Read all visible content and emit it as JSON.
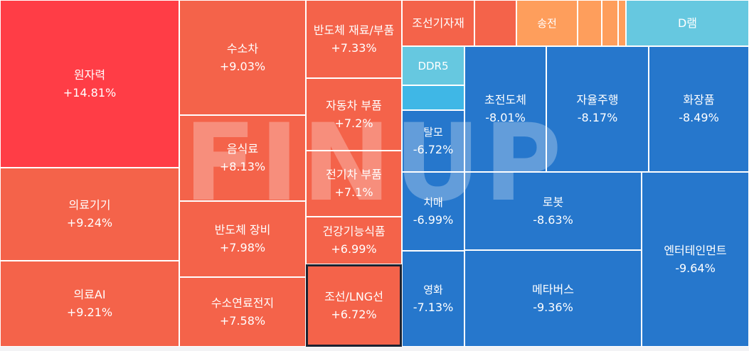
{
  "chart_data": {
    "type": "treemap",
    "colors": {
      "strong_up": "#ff3d46",
      "up": "#f4634a",
      "mild_up": "#fe9e5c",
      "mild_down": "#3fb7e6",
      "light_down": "#66c8e0",
      "down": "#2677cc",
      "border": "#ffffff",
      "selected_border": "#1c2230"
    },
    "items": [
      {
        "name": "원자력",
        "change": "+14.81%",
        "color": "strong_up"
      },
      {
        "name": "의료기기",
        "change": "+9.24%",
        "color": "up"
      },
      {
        "name": "의료AI",
        "change": "+9.21%",
        "color": "up"
      },
      {
        "name": "수소차",
        "change": "+9.03%",
        "color": "up"
      },
      {
        "name": "음식료",
        "change": "+8.13%",
        "color": "up"
      },
      {
        "name": "반도체 장비",
        "change": "+7.98%",
        "color": "up"
      },
      {
        "name": "수소연료전지",
        "change": "+7.58%",
        "color": "up"
      },
      {
        "name": "반도체 재료/부품",
        "change": "+7.33%",
        "color": "up"
      },
      {
        "name": "자동차 부품",
        "change": "+7.2%",
        "color": "up"
      },
      {
        "name": "전기차 부품",
        "change": "+7.1%",
        "color": "up"
      },
      {
        "name": "건강기능식품",
        "change": "+6.99%",
        "color": "up"
      },
      {
        "name": "조선/LNG선",
        "change": "+6.72%",
        "color": "up",
        "selected": true
      },
      {
        "name": "조선기자재",
        "change": "",
        "color": "up"
      },
      {
        "name": "",
        "change": "",
        "color": "up"
      },
      {
        "name": "송전",
        "change": "",
        "color": "mild_up"
      },
      {
        "name": "",
        "change": "",
        "color": "mild_up"
      },
      {
        "name": "",
        "change": "",
        "color": "mild_up"
      },
      {
        "name": "",
        "change": "",
        "color": "mild_up"
      },
      {
        "name": "D램",
        "change": "",
        "color": "light_down"
      },
      {
        "name": "DDR5",
        "change": "",
        "color": "light_down"
      },
      {
        "name": "",
        "change": "",
        "color": "mild_down"
      },
      {
        "name": "탈모",
        "change": "-6.72%",
        "color": "down"
      },
      {
        "name": "치매",
        "change": "-6.99%",
        "color": "down"
      },
      {
        "name": "영화",
        "change": "-7.13%",
        "color": "down"
      },
      {
        "name": "초전도체",
        "change": "-8.01%",
        "color": "down"
      },
      {
        "name": "자율주행",
        "change": "-8.17%",
        "color": "down"
      },
      {
        "name": "화장품",
        "change": "-8.49%",
        "color": "down"
      },
      {
        "name": "로봇",
        "change": "-8.63%",
        "color": "down"
      },
      {
        "name": "메타버스",
        "change": "-9.36%",
        "color": "down"
      },
      {
        "name": "엔터테인먼트",
        "change": "-9.64%",
        "color": "down"
      }
    ]
  },
  "watermark_text": "FINUP"
}
